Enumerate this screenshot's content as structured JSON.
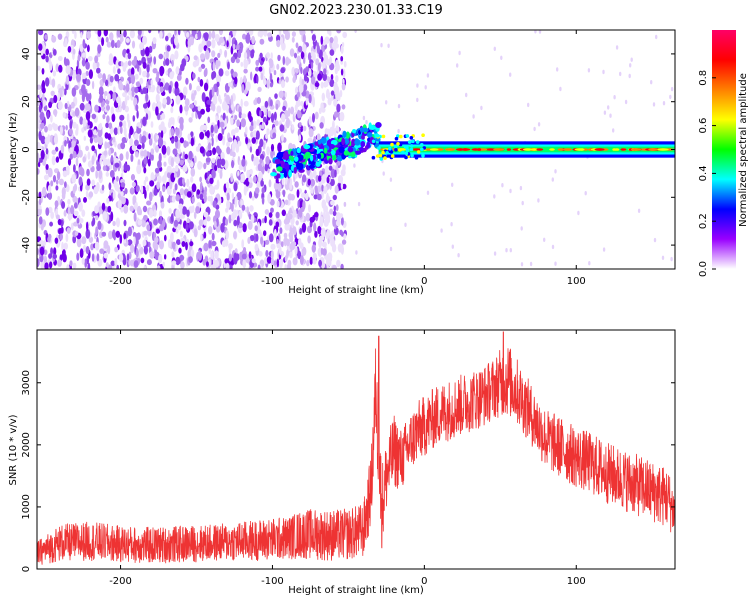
{
  "figure": {
    "title": "GN02.2023.230.01.33.C19"
  },
  "chart_data": [
    {
      "type": "heatmap",
      "xlabel": "Height of straight line (km)",
      "ylabel": "Frequency (Hz)",
      "xlim": [
        -255,
        165
      ],
      "ylim": [
        -50,
        50
      ],
      "x_ticks": [
        -200,
        -100,
        0,
        100
      ],
      "y_ticks": [
        -40,
        -20,
        0,
        20,
        40
      ],
      "colorbar": {
        "label": "Normalized spectral amplitude",
        "range": [
          0,
          1
        ],
        "ticks": [
          0.0,
          0.2,
          0.4,
          0.6,
          0.8
        ],
        "colormap": [
          "#ffffff",
          "#9900ff",
          "#0000ff",
          "#00ffff",
          "#00ff00",
          "#ffff00",
          "#ff8000",
          "#ff0000",
          "#ff0066"
        ]
      },
      "regions": [
        {
          "x_range": [
            -255,
            -52
          ],
          "frequency_range": [
            -50,
            50
          ],
          "amplitude": "low-to-mid, scattered"
        },
        {
          "x_range": [
            -100,
            -30
          ],
          "frequency_range": [
            -15,
            12
          ],
          "amplitude": "mid-to-high, diagonal streak"
        },
        {
          "x_range": [
            -30,
            165
          ],
          "frequency": 0,
          "bandwidth": 3,
          "amplitude": "high, continuous band"
        }
      ],
      "grid": false
    },
    {
      "type": "line",
      "xlabel": "Height of straight line (km)",
      "ylabel": "SNR (10 * v/v)",
      "xlim": [
        -255,
        165
      ],
      "ylim": [
        0,
        3850
      ],
      "x_ticks": [
        -200,
        -100,
        0,
        100
      ],
      "y_ticks": [
        0,
        1000,
        2000,
        3000
      ],
      "series": [
        {
          "color": "#ee3333",
          "x": [
            -255,
            -240,
            -220,
            -200,
            -180,
            -160,
            -140,
            -120,
            -100,
            -90,
            -80,
            -70,
            -60,
            -50,
            -40,
            -35,
            -32,
            -30,
            -28,
            -25,
            -20,
            -15,
            -10,
            -5,
            0,
            10,
            20,
            30,
            40,
            45,
            50,
            55,
            60,
            70,
            80,
            90,
            100,
            110,
            120,
            130,
            140,
            150,
            160,
            165
          ],
          "values": [
            250,
            420,
            450,
            400,
            380,
            400,
            420,
            450,
            480,
            500,
            560,
            560,
            540,
            560,
            620,
            1300,
            2900,
            1800,
            1000,
            1500,
            1900,
            1750,
            2000,
            2200,
            2300,
            2500,
            2600,
            2700,
            2800,
            2900,
            3000,
            3050,
            2900,
            2500,
            2100,
            1950,
            1800,
            1700,
            1550,
            1450,
            1350,
            1250,
            1150,
            900
          ],
          "spread": [
            200,
            300,
            320,
            300,
            300,
            300,
            300,
            320,
            350,
            350,
            400,
            420,
            420,
            420,
            450,
            600,
            800,
            800,
            700,
            600,
            600,
            500,
            500,
            500,
            500,
            500,
            500,
            500,
            500,
            500,
            550,
            600,
            550,
            500,
            500,
            500,
            500,
            500,
            500,
            500,
            500,
            500,
            500,
            400
          ],
          "peaks": [
            {
              "x": -30,
              "y": 3750
            },
            {
              "x": 52,
              "y": 3820
            }
          ]
        }
      ],
      "grid": false
    }
  ]
}
